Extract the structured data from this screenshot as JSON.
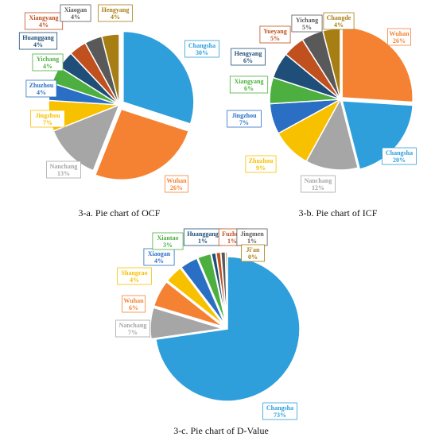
{
  "chart_data": [
    {
      "type": "pie",
      "title": "3-a. Pie chart of OCF",
      "slices": [
        {
          "name": "Changsha",
          "value": 30,
          "label": "30%",
          "color": "#2E9FDB"
        },
        {
          "name": "Wuhan",
          "value": 26,
          "label": "26%",
          "color": "#F58233"
        },
        {
          "name": "Nanchang",
          "value": 13,
          "label": "13%",
          "color": "#A6A6A6"
        },
        {
          "name": "Jingzhou",
          "value": 7,
          "label": "7%",
          "color": "#F7C100"
        },
        {
          "name": "Zhuzhou",
          "value": 4,
          "label": "4%",
          "color": "#2B6FC4"
        },
        {
          "name": "Yichang",
          "value": 4,
          "label": "4%",
          "color": "#4CAF3F"
        },
        {
          "name": "Huanggang",
          "value": 4,
          "label": "4%",
          "color": "#1F4E79"
        },
        {
          "name": "Xiangyang",
          "value": 4,
          "label": "4%",
          "color": "#C0501E"
        },
        {
          "name": "Xiaogan",
          "value": 4,
          "label": "4%",
          "color": "#595959"
        },
        {
          "name": "Hengyang",
          "value": 4,
          "label": "4%",
          "color": "#A77E13"
        }
      ]
    },
    {
      "type": "pie",
      "title": "3-b. Pie chart of ICF",
      "slices": [
        {
          "name": "Wuhan",
          "value": 26,
          "label": "26%",
          "color": "#F58233"
        },
        {
          "name": "Changsha",
          "value": 20,
          "label": "20%",
          "color": "#2E9FDB"
        },
        {
          "name": "Nanchang",
          "value": 12,
          "label": "12%",
          "color": "#A6A6A6"
        },
        {
          "name": "Zhuzhou",
          "value": 9,
          "label": "9%",
          "color": "#F7C100"
        },
        {
          "name": "Jingzhou",
          "value": 7,
          "label": "7%",
          "color": "#2B6FC4"
        },
        {
          "name": "Xiangyang",
          "value": 6,
          "label": "6%",
          "color": "#4CAF3F"
        },
        {
          "name": "Hengyang",
          "value": 6,
          "label": "6%",
          "color": "#1F4E79"
        },
        {
          "name": "Yueyang",
          "value": 5,
          "label": "5%",
          "color": "#C0501E"
        },
        {
          "name": "Yichang",
          "value": 5,
          "label": "5%",
          "color": "#595959"
        },
        {
          "name": "Changde",
          "value": 4,
          "label": "4%",
          "color": "#A77E13"
        }
      ]
    },
    {
      "type": "pie",
      "title": "3-c. Pie chart of D-Value",
      "slices": [
        {
          "name": "Changsha",
          "value": 73,
          "label": "73%",
          "color": "#2E9FDB"
        },
        {
          "name": "Nanchang",
          "value": 7,
          "label": "7%",
          "color": "#A6A6A6"
        },
        {
          "name": "Wuhan",
          "value": 6,
          "label": "6%",
          "color": "#F58233"
        },
        {
          "name": "Shangrao",
          "value": 4,
          "label": "4%",
          "color": "#F7C100"
        },
        {
          "name": "Xiaogan",
          "value": 4,
          "label": "4%",
          "color": "#2B6FC4"
        },
        {
          "name": "Xiantao",
          "value": 3,
          "label": "3%",
          "color": "#4CAF3F"
        },
        {
          "name": "Huanggang",
          "value": 1,
          "label": "1%",
          "color": "#1F4E79"
        },
        {
          "name": "Fuzhou",
          "value": 1,
          "label": "1%",
          "color": "#C0501E"
        },
        {
          "name": "Jingmen",
          "value": 1,
          "label": "1%",
          "color": "#595959"
        },
        {
          "name": "Ji'an",
          "value": 0.4,
          "label": "0%",
          "color": "#A77E13"
        }
      ]
    }
  ]
}
